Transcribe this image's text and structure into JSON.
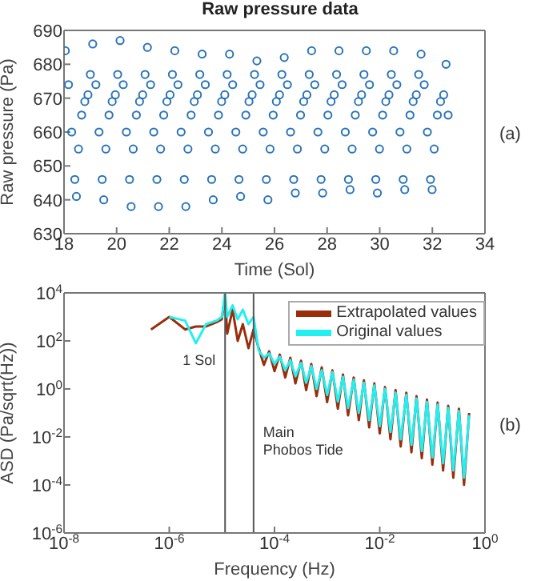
{
  "chart_data": [
    {
      "type": "scatter",
      "title": "Raw pressure data",
      "xlabel": "Time (Sol)",
      "ylabel": "Raw pressure (Pa)",
      "annotations": [
        "(a)"
      ],
      "xlim": [
        18,
        34
      ],
      "xticks": [
        18,
        20,
        22,
        24,
        26,
        28,
        30,
        32,
        34
      ],
      "ylim": [
        630,
        690
      ],
      "yticks": [
        630,
        640,
        650,
        660,
        670,
        680,
        690
      ],
      "marker": "circle",
      "series": [
        {
          "color": "#2a74b8",
          "x": [
            18.05,
            18.17,
            18.29,
            18.41,
            18.47,
            18.55,
            18.67,
            18.79,
            18.91,
            19.0,
            19.09,
            19.21,
            19.33,
            19.45,
            19.51,
            19.59,
            19.71,
            19.83,
            19.95,
            20.04,
            20.13,
            20.25,
            20.37,
            20.49,
            20.55,
            20.63,
            20.75,
            20.87,
            20.99,
            21.08,
            21.17,
            21.29,
            21.41,
            21.53,
            21.59,
            21.67,
            21.79,
            21.91,
            22.03,
            22.12,
            22.21,
            22.33,
            22.45,
            22.57,
            22.63,
            22.71,
            22.83,
            22.95,
            23.07,
            23.16,
            23.25,
            23.37,
            23.49,
            23.61,
            23.67,
            23.75,
            23.87,
            23.99,
            24.11,
            24.2,
            24.29,
            24.41,
            24.53,
            24.65,
            24.71,
            24.79,
            24.91,
            25.03,
            25.15,
            25.24,
            25.33,
            25.45,
            25.57,
            25.69,
            25.75,
            25.83,
            25.95,
            26.07,
            26.19,
            26.28,
            26.37,
            26.49,
            26.61,
            26.73,
            26.79,
            26.87,
            26.99,
            27.11,
            27.23,
            27.32,
            27.41,
            27.53,
            27.65,
            27.77,
            27.83,
            27.91,
            28.03,
            28.15,
            28.27,
            28.36,
            28.45,
            28.57,
            28.69,
            28.81,
            28.87,
            28.95,
            29.07,
            29.19,
            29.31,
            29.4,
            29.49,
            29.61,
            29.73,
            29.85,
            29.91,
            29.99,
            30.11,
            30.23,
            30.35,
            30.44,
            30.53,
            30.65,
            30.77,
            30.89,
            30.95,
            31.03,
            31.15,
            31.27,
            31.39,
            31.48,
            31.57,
            31.69,
            31.81,
            31.93,
            31.99,
            32.07,
            32.19,
            32.31,
            32.43,
            32.52,
            32.6
          ],
          "values": [
            684,
            674,
            660,
            646,
            641,
            655,
            665,
            669,
            671,
            677,
            686,
            674,
            660,
            646,
            640,
            655,
            665,
            669,
            671,
            677,
            687,
            674,
            660,
            646,
            638,
            655,
            665,
            669,
            671,
            677,
            685,
            674,
            660,
            646,
            638,
            655,
            665,
            669,
            671,
            677,
            684,
            674,
            660,
            646,
            638,
            655,
            665,
            669,
            671,
            677,
            683,
            674,
            660,
            646,
            640,
            655,
            665,
            669,
            671,
            677,
            683,
            674,
            660,
            646,
            641,
            655,
            665,
            669,
            671,
            677,
            681,
            674,
            660,
            646,
            640,
            655,
            665,
            669,
            671,
            677,
            682,
            674,
            660,
            646,
            642,
            655,
            665,
            669,
            671,
            677,
            684,
            674,
            660,
            646,
            642,
            655,
            665,
            669,
            671,
            677,
            684,
            674,
            660,
            646,
            643,
            655,
            665,
            669,
            671,
            677,
            684,
            674,
            660,
            646,
            642,
            655,
            665,
            669,
            671,
            677,
            684,
            674,
            660,
            646,
            643,
            655,
            665,
            669,
            671,
            677,
            683,
            674,
            660,
            646,
            643,
            655,
            665,
            669,
            671,
            680,
            665
          ]
        }
      ]
    },
    {
      "type": "line",
      "xlabel": "Frequency (Hz)",
      "ylabel": "ASD (Pa/sqrt(Hz))",
      "annotations": [
        "(b)"
      ],
      "log": "xy",
      "legend": "top right",
      "line_style": "solid",
      "xlim": [
        1e-08,
        1
      ],
      "xticks": [
        {
          "value": 1e-08,
          "label": "10$^{-8}$"
        },
        {
          "value": 1e-06,
          "label": "10$^{-6}$"
        },
        {
          "value": 0.0001,
          "label": "10$^{-4}$"
        },
        {
          "value": 0.01,
          "label": "10$^{-2}$"
        },
        {
          "value": 1,
          "label": "10$^{0}$"
        }
      ],
      "ylim": [
        1e-06,
        10000
      ],
      "yticks": [
        {
          "value": 1e-06,
          "label": "10$^{-6}$"
        },
        {
          "value": 0.0001,
          "label": "10$^{-4}$"
        },
        {
          "value": 0.01,
          "label": "10$^{-2}$"
        },
        {
          "value": 1,
          "label": "10$^{0}$"
        },
        {
          "value": 100,
          "label": "10$^{2}$"
        },
        {
          "value": 10000,
          "label": "10$^{4}$"
        }
      ],
      "ref_lines": [
        {
          "axis": "x",
          "value": 1.15e-05,
          "label": "1 Sol",
          "color": "#555555"
        },
        {
          "axis": "x",
          "value": 4e-05,
          "label": "Main Phobos Tide",
          "color": "#555555"
        }
      ],
      "series": [
        {
          "name": "Extrapolated values",
          "color": "#9b2d0c",
          "x": [
            4.5e-07,
            1e-06,
            2e-06,
            3.2e-06,
            5e-06,
            7.9e-06,
            1e-05,
            1.15e-05,
            1.26e-05,
            1.6e-05,
            2e-05,
            2.5e-05,
            3.2e-05,
            4e-05,
            5e-05,
            6.3e-05,
            7.9e-05,
            0.0001,
            0.000126,
            0.00016,
            0.0002,
            0.00025,
            0.00032,
            0.0004,
            0.0005,
            0.00063,
            0.00079,
            0.001,
            0.00126,
            0.0016,
            0.002,
            0.0025,
            0.0032,
            0.004,
            0.005,
            0.0063,
            0.0079,
            0.01,
            0.0126,
            0.016,
            0.02,
            0.025,
            0.032,
            0.04,
            0.05,
            0.063,
            0.079,
            0.1,
            0.126,
            0.16,
            0.2,
            0.25,
            0.32,
            0.4,
            0.5
          ],
          "values": [
            300,
            1000,
            300,
            400,
            400,
            600,
            800,
            8000,
            200,
            2000,
            100,
            500,
            50,
            300,
            50,
            10,
            37,
            5.5,
            27,
            3,
            20,
            1.7,
            15,
            0.9,
            11,
            0.5,
            8,
            0.28,
            6,
            0.15,
            4,
            0.08,
            3,
            0.05,
            2.3,
            0.025,
            1.7,
            0.014,
            1.2,
            0.008,
            0.9,
            0.004,
            0.7,
            0.0023,
            0.5,
            0.0013,
            0.36,
            0.0007,
            0.27,
            0.0004,
            0.2,
            0.0002,
            0.15,
            0.0001,
            0.1
          ]
        },
        {
          "name": "Original values",
          "color": "#22f0f0",
          "x": [
            1e-06,
            2e-06,
            3.2e-06,
            5e-06,
            7.9e-06,
            1e-05,
            1.15e-05,
            1.26e-05,
            1.6e-05,
            2e-05,
            2.5e-05,
            3.2e-05,
            4e-05,
            5e-05,
            6.3e-05,
            7.9e-05,
            0.0001,
            0.000126,
            0.00016,
            0.0002,
            0.00025,
            0.00032,
            0.0004,
            0.0005,
            0.00063,
            0.00079,
            0.001,
            0.00126,
            0.0016,
            0.002,
            0.0025,
            0.0032,
            0.004,
            0.005,
            0.0063,
            0.0079,
            0.01,
            0.0126,
            0.016,
            0.02,
            0.025,
            0.032,
            0.04,
            0.05,
            0.063,
            0.079,
            0.1,
            0.126,
            0.16,
            0.2,
            0.25,
            0.32,
            0.4,
            0.5
          ],
          "values": [
            1000,
            700,
            80,
            500,
            700,
            1000,
            10000,
            1000,
            3000,
            800,
            2000,
            500,
            1000,
            40,
            20,
            30,
            11,
            22,
            6,
            16,
            3.4,
            12,
            1.8,
            9,
            1,
            6,
            0.56,
            5,
            0.3,
            3.2,
            0.16,
            2.4,
            0.1,
            1.8,
            0.05,
            1.4,
            0.028,
            1,
            0.016,
            0.7,
            0.008,
            0.56,
            0.0046,
            0.4,
            0.0026,
            0.29,
            0.0014,
            0.22,
            0.0008,
            0.16,
            0.0004,
            0.12,
            0.0002,
            0.08
          ]
        }
      ]
    }
  ]
}
